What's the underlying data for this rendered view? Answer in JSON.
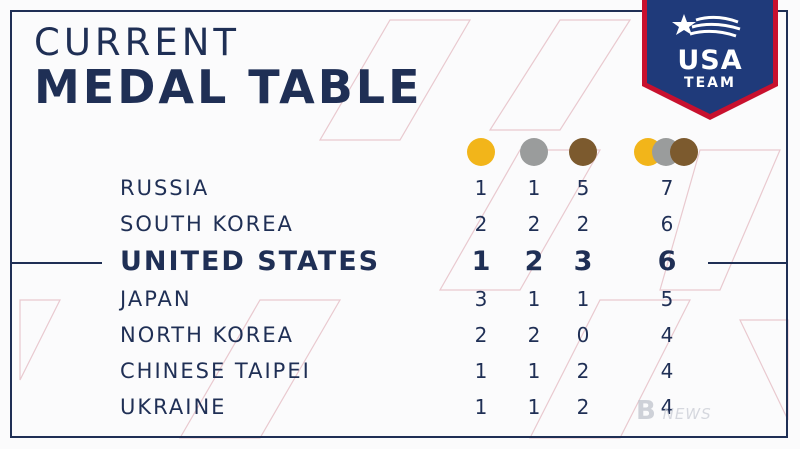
{
  "header": {
    "title_line1": "CURRENT",
    "title_line2": "MEDAL TABLE"
  },
  "logo": {
    "line1": "USA",
    "line2": "TEAM",
    "icon": "star-flag-icon",
    "color": "#1f3a7a"
  },
  "colors": {
    "navy": "#1f2f55",
    "gold": "#f2b51a",
    "silver": "#9a9c9c",
    "bronze": "#7c5a2e",
    "accent_red": "#c8102e"
  },
  "medal_icons": [
    "gold-medal-icon",
    "silver-medal-icon",
    "bronze-medal-icon",
    "total-medals-icon"
  ],
  "rows": [
    {
      "country": "RUSSIA",
      "gold": "1",
      "silver": "1",
      "bronze": "5",
      "total": "7"
    },
    {
      "country": "SOUTH KOREA",
      "gold": "2",
      "silver": "2",
      "bronze": "2",
      "total": "6"
    },
    {
      "country": "UNITED STATES",
      "gold": "1",
      "silver": "2",
      "bronze": "3",
      "total": "6"
    },
    {
      "country": "JAPAN",
      "gold": "3",
      "silver": "1",
      "bronze": "1",
      "total": "5"
    },
    {
      "country": "NORTH KOREA",
      "gold": "2",
      "silver": "2",
      "bronze": "0",
      "total": "4"
    },
    {
      "country": "CHINESE TAIPEI",
      "gold": "1",
      "silver": "1",
      "bronze": "2",
      "total": "4"
    },
    {
      "country": "UKRAINE",
      "gold": "1",
      "silver": "1",
      "bronze": "2",
      "total": "4"
    }
  ],
  "watermark": {
    "glyph": "B",
    "text": "NEWS"
  }
}
